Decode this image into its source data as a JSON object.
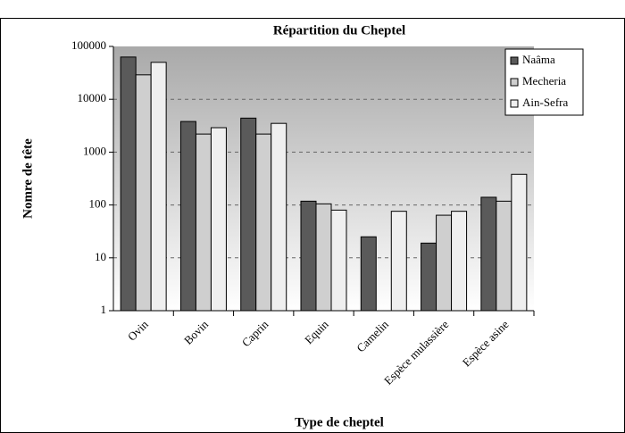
{
  "chart_data": {
    "type": "bar",
    "title": "Répartition du Cheptel",
    "x_label": "Type de cheptel",
    "y_label": "Nomre de tête",
    "categories": [
      "Ovin",
      "Bovin",
      "Caprin",
      "Equin",
      "Camelin",
      "Espèce mulassière",
      "Espèce asine"
    ],
    "series": [
      {
        "name": "Naâma",
        "color": "#5a5a5a",
        "values": [
          63000,
          3800,
          4400,
          118,
          25,
          19,
          140
        ]
      },
      {
        "name": "Mecheria",
        "color": "#cfcfcf",
        "values": [
          29000,
          2200,
          2200,
          105,
          null,
          64,
          118
        ]
      },
      {
        "name": "Ain-Sefra",
        "color": "#efefef",
        "values": [
          50000,
          2900,
          3500,
          80,
          76,
          76,
          380
        ]
      }
    ],
    "ylim": [
      1,
      100000
    ],
    "yticks": [
      1,
      10,
      100,
      1000,
      10000,
      100000
    ],
    "log_y": true,
    "grid": true,
    "legend": "top-right"
  }
}
